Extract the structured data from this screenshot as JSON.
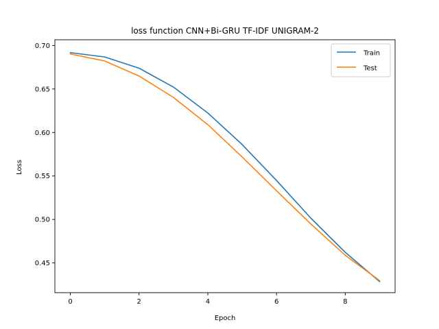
{
  "chart_data": {
    "type": "line",
    "title": "loss function CNN+Bi-GRU TF-IDF UNIGRAM-2",
    "xlabel": "Epoch",
    "ylabel": "Loss",
    "x": [
      0,
      1,
      2,
      3,
      4,
      5,
      6,
      7,
      8,
      9
    ],
    "xlim": [
      -0.45,
      9.45
    ],
    "ylim": [
      0.4158,
      0.7066
    ],
    "xticks": [
      0,
      2,
      4,
      6,
      8
    ],
    "yticks": [
      0.45,
      0.5,
      0.55,
      0.6,
      0.65,
      0.7
    ],
    "xtick_labels": [
      "0",
      "2",
      "4",
      "6",
      "8"
    ],
    "ytick_labels": [
      "0.45",
      "0.50",
      "0.55",
      "0.60",
      "0.65",
      "0.70"
    ],
    "grid": false,
    "legend_position": "top-right",
    "series": [
      {
        "name": "Train",
        "color": "#1f77b4",
        "values": [
          0.6918,
          0.6868,
          0.6739,
          0.6522,
          0.6224,
          0.5861,
          0.5448,
          0.5014,
          0.4622,
          0.4285
        ]
      },
      {
        "name": "Test",
        "color": "#ff7f0e",
        "values": [
          0.6902,
          0.6822,
          0.6649,
          0.6403,
          0.609,
          0.5718,
          0.533,
          0.4947,
          0.4588,
          0.4297
        ]
      }
    ]
  }
}
